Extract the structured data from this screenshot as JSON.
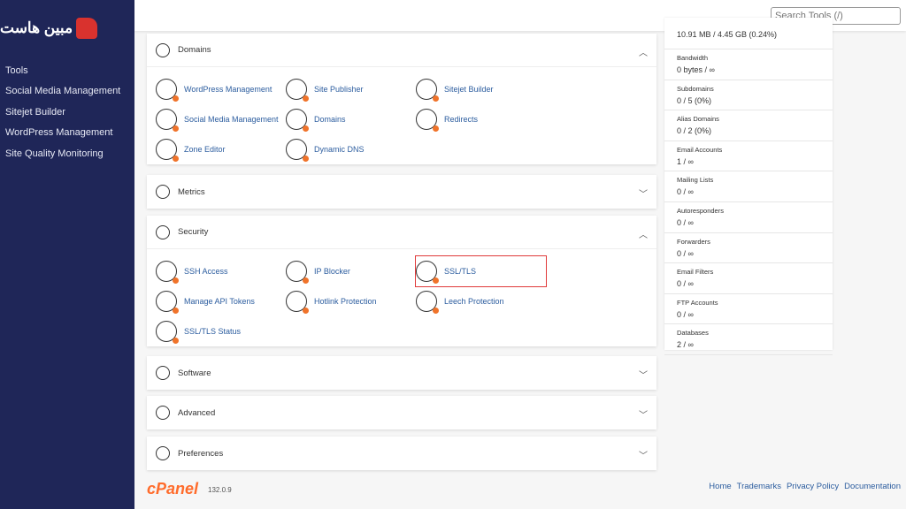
{
  "sidebar": {
    "logo_text": "مبين هاست",
    "items": [
      {
        "label": "Tools"
      },
      {
        "label": "Social Media Management"
      },
      {
        "label": "Sitejet Builder"
      },
      {
        "label": "WordPress Management"
      },
      {
        "label": "Site Quality Monitoring"
      }
    ]
  },
  "search": {
    "placeholder": "Search Tools (/)"
  },
  "sections": [
    {
      "title": "Domains",
      "icon": "globe-icon",
      "expanded": true,
      "items": [
        {
          "label": "WordPress Management"
        },
        {
          "label": "Site Publisher"
        },
        {
          "label": "Sitejet Builder"
        },
        {
          "label": "Social Media Management"
        },
        {
          "label": "Domains"
        },
        {
          "label": "Redirects"
        },
        {
          "label": "Zone Editor"
        },
        {
          "label": "Dynamic DNS"
        }
      ]
    },
    {
      "title": "Metrics",
      "icon": "bar-chart-icon",
      "expanded": false
    },
    {
      "title": "Security",
      "icon": "shield-icon",
      "expanded": true,
      "items": [
        {
          "label": "SSH Access"
        },
        {
          "label": "IP Blocker"
        },
        {
          "label": "SSL/TLS",
          "highlighted": true
        },
        {
          "label": "Manage API Tokens"
        },
        {
          "label": "Hotlink Protection"
        },
        {
          "label": "Leech Protection"
        },
        {
          "label": "SSL/TLS Status"
        }
      ]
    },
    {
      "title": "Software",
      "icon": "code-icon",
      "expanded": false
    },
    {
      "title": "Advanced",
      "icon": "gear-icon",
      "expanded": false
    },
    {
      "title": "Preferences",
      "icon": "sliders-icon",
      "expanded": false
    }
  ],
  "stats": [
    {
      "label": "",
      "value": "10.91 MB / 4.45 GB   (0.24%)"
    },
    {
      "label": "Bandwidth",
      "value": "0 bytes / ∞"
    },
    {
      "label": "Subdomains",
      "value": "0 / 5   (0%)"
    },
    {
      "label": "Alias Domains",
      "value": "0 / 2   (0%)"
    },
    {
      "label": "Email Accounts",
      "value": "1 / ∞"
    },
    {
      "label": "Mailing Lists",
      "value": "0 / ∞"
    },
    {
      "label": "Autoresponders",
      "value": "0 / ∞"
    },
    {
      "label": "Forwarders",
      "value": "0 / ∞"
    },
    {
      "label": "Email Filters",
      "value": "0 / ∞"
    },
    {
      "label": "FTP Accounts",
      "value": "0 / ∞"
    },
    {
      "label": "Databases",
      "value": "2 / ∞"
    }
  ],
  "footer": {
    "brand": "cPanel",
    "version": "132.0.9",
    "links": [
      "Home",
      "Trademarks",
      "Privacy Policy",
      "Documentation"
    ]
  },
  "colors": {
    "sidebar": "#1f2658",
    "link": "#2c5d9f",
    "accent": "#ff6c2c",
    "highlight": "#e03a3a"
  }
}
